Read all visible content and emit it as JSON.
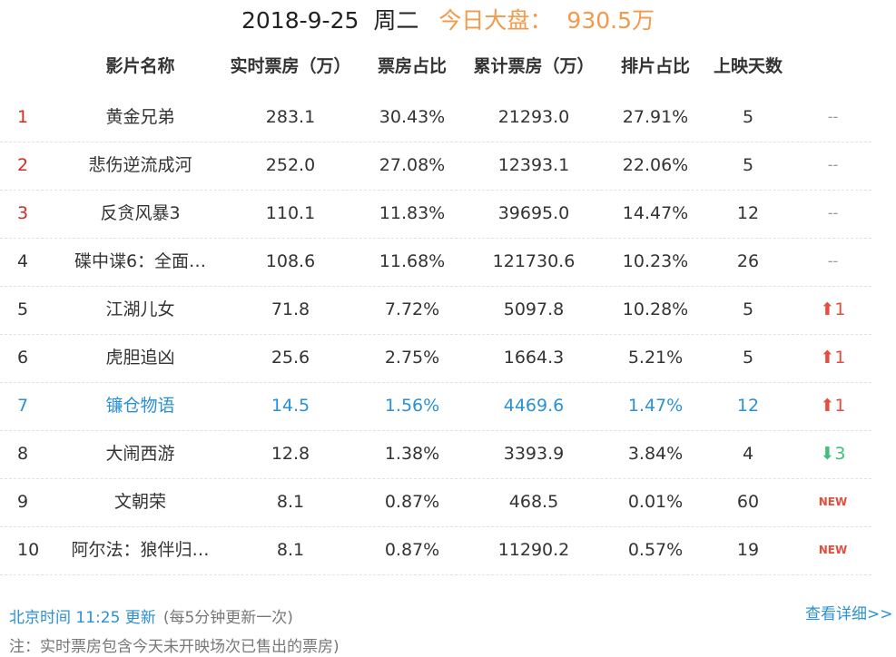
{
  "header": {
    "date": "2018-9-25",
    "weekday": "周二",
    "total_label": "今日大盘：",
    "total_value": "930.5万"
  },
  "columns": {
    "name": "影片名称",
    "realtime": "实时票房（万）",
    "share": "票房占比",
    "cumulative": "累计票房（万）",
    "schedule": "排片占比",
    "days": "上映天数"
  },
  "rows": [
    {
      "rank": "1",
      "name": "黄金兄弟",
      "realtime": "283.1",
      "share": "30.43%",
      "cumulative": "21293.0",
      "schedule": "27.91%",
      "days": "5",
      "change_type": "none",
      "change": "--"
    },
    {
      "rank": "2",
      "name": "悲伤逆流成河",
      "realtime": "252.0",
      "share": "27.08%",
      "cumulative": "12393.1",
      "schedule": "22.06%",
      "days": "5",
      "change_type": "none",
      "change": "--"
    },
    {
      "rank": "3",
      "name": "反贪风暴3",
      "realtime": "110.1",
      "share": "11.83%",
      "cumulative": "39695.0",
      "schedule": "14.47%",
      "days": "12",
      "change_type": "none",
      "change": "--"
    },
    {
      "rank": "4",
      "name": "碟中谍6：全面…",
      "realtime": "108.6",
      "share": "11.68%",
      "cumulative": "121730.6",
      "schedule": "10.23%",
      "days": "26",
      "change_type": "none",
      "change": "--"
    },
    {
      "rank": "5",
      "name": "江湖儿女",
      "realtime": "71.8",
      "share": "7.72%",
      "cumulative": "5097.8",
      "schedule": "10.28%",
      "days": "5",
      "change_type": "up",
      "change": "1"
    },
    {
      "rank": "6",
      "name": "虎胆追凶",
      "realtime": "25.6",
      "share": "2.75%",
      "cumulative": "1664.3",
      "schedule": "5.21%",
      "days": "5",
      "change_type": "up",
      "change": "1"
    },
    {
      "rank": "7",
      "name": "镰仓物语",
      "realtime": "14.5",
      "share": "1.56%",
      "cumulative": "4469.6",
      "schedule": "1.47%",
      "days": "12",
      "change_type": "up",
      "change": "1"
    },
    {
      "rank": "8",
      "name": "大闹西游",
      "realtime": "12.8",
      "share": "1.38%",
      "cumulative": "3393.9",
      "schedule": "3.84%",
      "days": "4",
      "change_type": "down",
      "change": "3"
    },
    {
      "rank": "9",
      "name": "文朝荣",
      "realtime": "8.1",
      "share": "0.87%",
      "cumulative": "468.5",
      "schedule": "0.01%",
      "days": "60",
      "change_type": "new",
      "change": "NEW"
    },
    {
      "rank": "10",
      "name": "阿尔法：狼伴归…",
      "realtime": "8.1",
      "share": "0.87%",
      "cumulative": "11290.2",
      "schedule": "0.57%",
      "days": "19",
      "change_type": "new",
      "change": "NEW"
    }
  ],
  "footer": {
    "update_time": "北京时间 11:25 更新",
    "update_note": "(每5分钟更新一次)",
    "note": "注：实时票房包含今天未开映场次已售出的票房)",
    "detail_link": "查看详细>>"
  },
  "colors": {
    "accent_orange": "#f39a4a",
    "rank_red": "#cc2f24",
    "highlight_blue": "#2a91d6",
    "up_red": "#e74c3c",
    "down_green": "#3fbf78"
  }
}
